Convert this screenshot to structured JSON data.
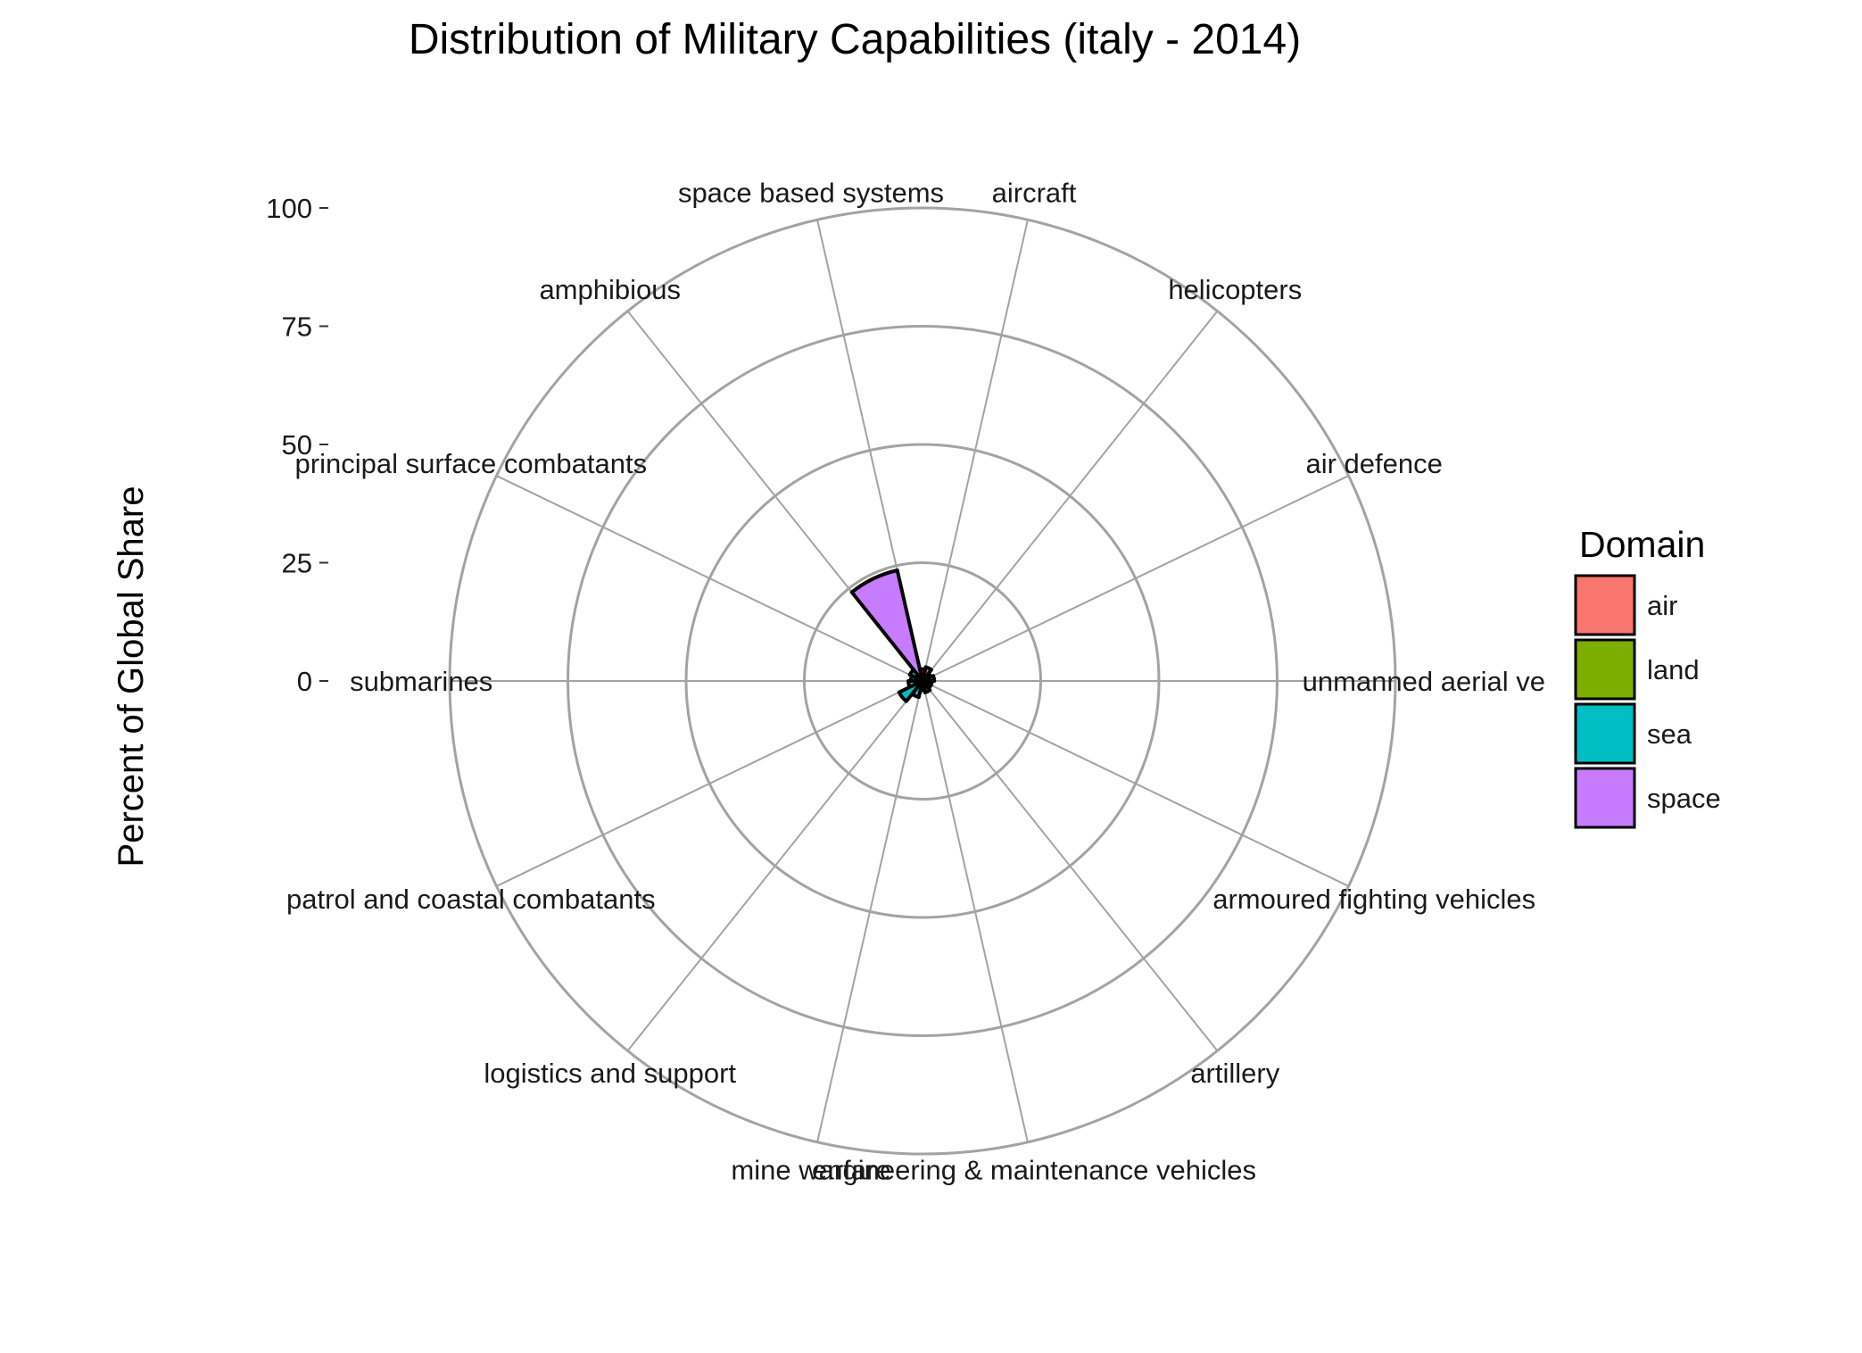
{
  "chart_data": {
    "type": "bar",
    "coord": "polar",
    "title": "Distribution of Military Capabilities (italy - 2014)",
    "xlabel": "",
    "ylabel": "Percent of Global Share",
    "ylim": [
      0,
      100
    ],
    "y_ticks": [
      0,
      25,
      50,
      75,
      100
    ],
    "grid": true,
    "categories": [
      "unmanned aerial ve",
      "air defence",
      "helicopters",
      "aircraft",
      "space based systems",
      "amphibious",
      "principal surface combatants",
      "submarines",
      "patrol and coastal combatants",
      "logistics and support",
      "mine warfare",
      "engineering & maintenance vehicles",
      "artillery",
      "armoured fighting vehicles"
    ],
    "domains": [
      "air",
      "air",
      "air",
      "air",
      "space",
      "sea",
      "sea",
      "sea",
      "sea",
      "sea",
      "sea",
      "land",
      "land",
      "land"
    ],
    "values": [
      2.5,
      2.0,
      3.0,
      2.5,
      24,
      3.0,
      2.5,
      3.0,
      5.5,
      3.5,
      2.0,
      2.5,
      2.0,
      2.0
    ],
    "legend": {
      "title": "Domain",
      "position": "right",
      "entries": [
        {
          "label": "air",
          "color": "#F8766D"
        },
        {
          "label": "land",
          "color": "#7CAE00"
        },
        {
          "label": "sea",
          "color": "#00BFC4"
        },
        {
          "label": "space",
          "color": "#C77CFF"
        }
      ]
    }
  }
}
